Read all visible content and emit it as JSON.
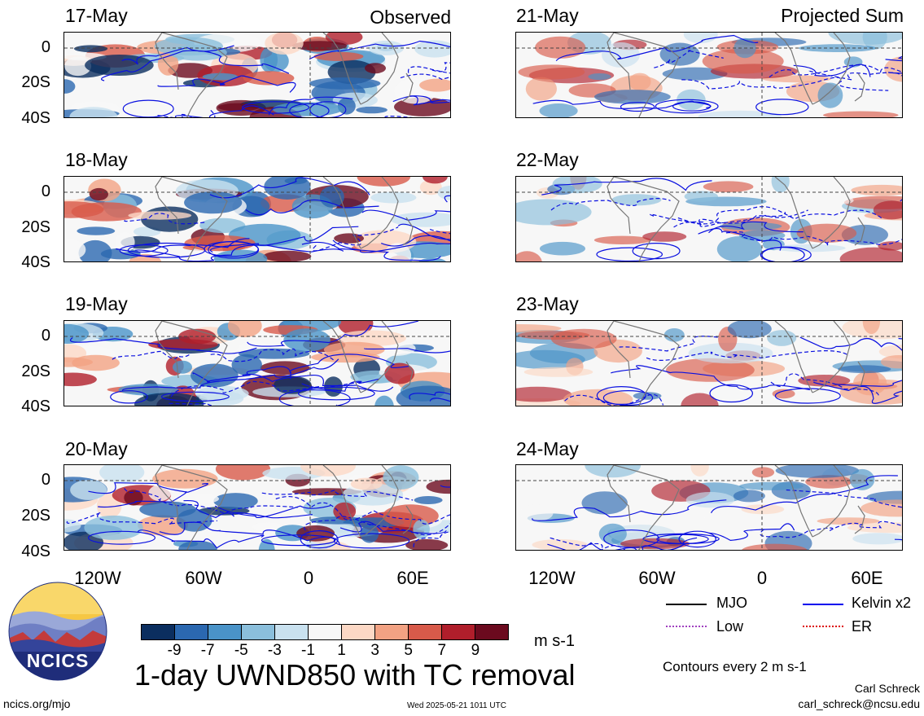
{
  "panels": {
    "left": {
      "tag": "Observed",
      "dates": [
        "17-May",
        "18-May",
        "19-May",
        "20-May"
      ]
    },
    "right": {
      "tag": "Projected Sum",
      "dates": [
        "21-May",
        "22-May",
        "23-May",
        "24-May"
      ]
    }
  },
  "axes": {
    "y_ticks": [
      "0",
      "20S",
      "40S"
    ],
    "x_ticks": [
      "120W",
      "60W",
      "0",
      "60E"
    ]
  },
  "legend": {
    "items": [
      {
        "label": "MJO",
        "color": "#000000",
        "style": "solid"
      },
      {
        "label": "Kelvin x2",
        "color": "#0000ee",
        "style": "solid"
      },
      {
        "label": "Low",
        "color": "#a040c0",
        "style": "dotted"
      },
      {
        "label": "ER",
        "color": "#dd0000",
        "style": "dotted"
      }
    ],
    "contours_note": "Contours every 2 m s-1"
  },
  "colorbar": {
    "colors": [
      "#0b2e5f",
      "#2b68b0",
      "#4a93c8",
      "#8bbfdc",
      "#c9e1ef",
      "#f7f7f7",
      "#fcd8c5",
      "#f2a283",
      "#d85a4a",
      "#b01e2b",
      "#6b0a1e"
    ],
    "ticks": [
      "-9",
      "-7",
      "-5",
      "-3",
      "-1",
      "1",
      "3",
      "5",
      "7",
      "9"
    ],
    "units": "m s-1"
  },
  "title": "1-day UWND850 with TC removal",
  "logo": {
    "text": "NCICS"
  },
  "footer": {
    "website": "ncics.org/mjo",
    "timestamp": "Wed 2025-05-21 1011 UTC",
    "author": "Carl Schreck",
    "email": "carl_schreck@ncsu.edu"
  }
}
